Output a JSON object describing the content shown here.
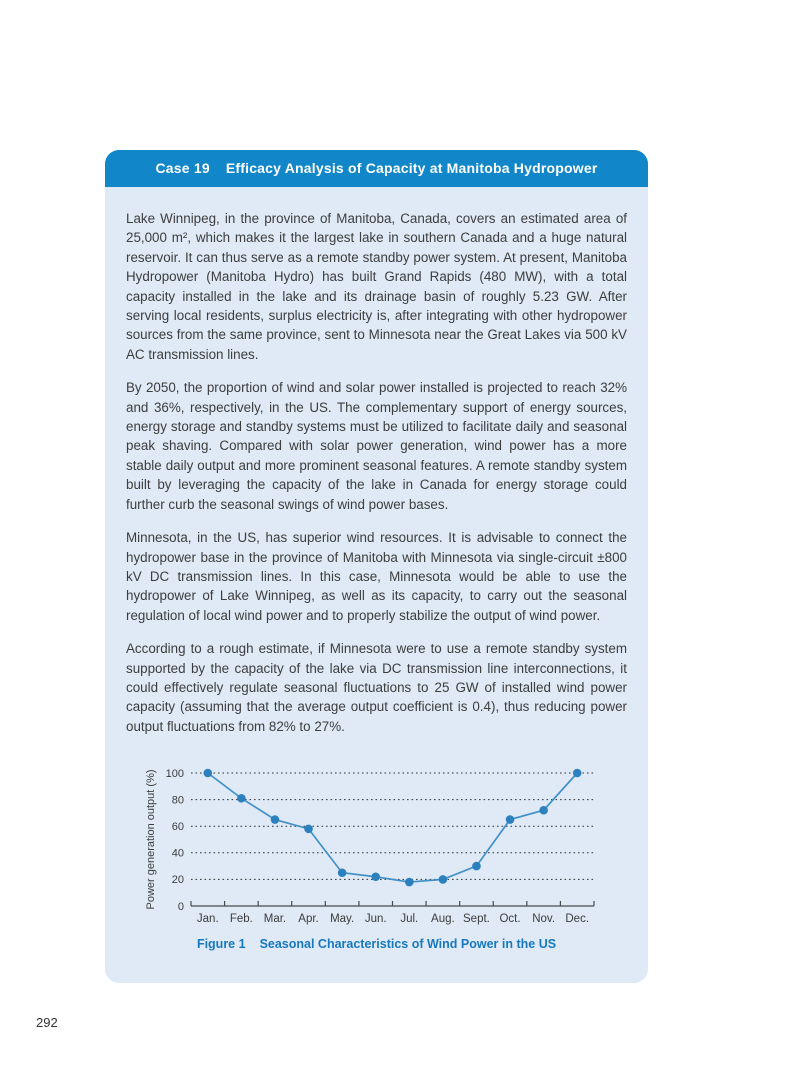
{
  "page": {
    "number": "292"
  },
  "case_box": {
    "header": {
      "label": "Case 19",
      "title": "Efficacy Analysis of Capacity at Manitoba Hydropower"
    },
    "paragraphs": [
      "Lake Winnipeg, in the province of Manitoba, Canada, covers an estimated area of 25,000 m², which makes it the largest lake in southern Canada and a huge natural reservoir. It can thus serve as a remote standby power system. At present, Manitoba Hydropower (Manitoba Hydro) has built Grand Rapids (480 MW), with a total capacity installed in the lake and its drainage basin of roughly 5.23 GW. After serving local residents, surplus electricity is, after integrating with other hydropower sources from the same province, sent to Minnesota near the Great Lakes via 500 kV AC transmission lines.",
      "By 2050, the proportion of wind and solar power installed is projected to reach 32% and 36%, respectively, in the US. The complementary support of energy sources, energy storage and standby systems must be utilized to facilitate daily and seasonal peak shaving. Compared with solar power generation, wind power has a more stable daily output and more prominent seasonal features. A remote standby system built by leveraging the capacity of the lake in Canada for energy storage could further curb the seasonal swings of wind power bases.",
      "Minnesota, in the US, has superior wind resources. It is advisable to connect the hydropower base in the province of Manitoba with Minnesota via single-circuit ±800 kV DC transmission lines. In this case, Minnesota would be able to use the hydropower of Lake Winnipeg, as well as its capacity, to carry out the seasonal regulation of local wind power and to properly stabilize the output of wind power.",
      "According to a rough estimate, if Minnesota were to use a remote standby system supported by the capacity of the lake via DC transmission line interconnections, it could effectively regulate seasonal fluctuations to 25 GW of installed wind power capacity (assuming that the average output coefficient is 0.4), thus reducing power output fluctuations from 82% to 27%."
    ]
  },
  "figure": {
    "caption_label": "Figure 1",
    "caption_title": "Seasonal Characteristics of Wind Power in the US"
  },
  "chart_data": {
    "type": "line",
    "categories": [
      "Jan.",
      "Feb.",
      "Mar.",
      "Apr.",
      "May.",
      "Jun.",
      "Jul.",
      "Aug.",
      "Sept.",
      "Oct.",
      "Nov.",
      "Dec."
    ],
    "values": [
      100,
      81,
      65,
      58,
      25,
      22,
      18,
      20,
      30,
      65,
      72,
      100
    ],
    "title": "",
    "xlabel": "",
    "ylabel": "Power generation output (%)",
    "yticks": [
      0,
      20,
      40,
      60,
      80,
      100
    ],
    "ylim": [
      0,
      105
    ],
    "grid": "dotted horizontal gridlines at 20, 40, 60, 80, 100",
    "legend": "none",
    "marker": "filled-circle"
  },
  "colors": {
    "header_bg": "#1187ca",
    "panel_bg": "#dfeaf6",
    "caption_blue": "#1778be",
    "line_blue": "#4191c8",
    "marker_blue": "#2c80bd",
    "body_text": "#3d3d3d"
  }
}
